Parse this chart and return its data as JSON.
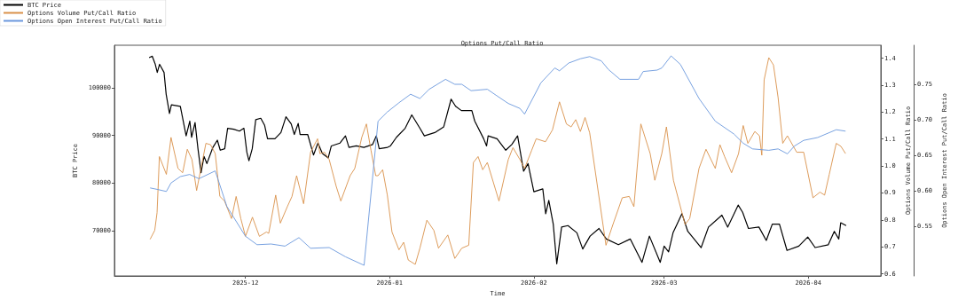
{
  "chart_data": {
    "type": "line",
    "title": "Options Put/Call Ratio",
    "xlabel": "Time",
    "ylabel": "BTC Price",
    "y2label": "Options Volume Put/Call Ratio",
    "y3label": "Options Open Interest Put/Call Ratio",
    "xlim": [
      "2025-11-02T20:00",
      "2026-04-16T14:00"
    ],
    "xticks": [
      "2025-12",
      "2026-01",
      "2026-02",
      "2026-03",
      "2026-04"
    ],
    "ylim": [
      60556,
      108889
    ],
    "yticks": [
      70000,
      80000,
      90000,
      100000
    ],
    "y2lim": [
      0.592,
      1.448
    ],
    "y2ticks": [
      0.6,
      0.7,
      0.8,
      0.9,
      {
        "value": 1,
        "label": "1.0"
      },
      1.1,
      1.2,
      1.3,
      1.4
    ],
    "y3lim": [
      0.48,
      0.805
    ],
    "y3ticks": [
      0.55,
      {
        "value": 0.6,
        "label": "0.60"
      },
      0.65,
      {
        "value": 0.7,
        "label": "0.70"
      },
      0.75
    ],
    "legend": "top left",
    "grid": false,
    "marker": "none",
    "series": [
      {
        "name": "BTC Price",
        "color": "#000000",
        "x": [
          "2025-11-10T07:00",
          "2025-11-10T23:00",
          "2025-11-11T14:00",
          "2025-11-12T01:00",
          "2025-11-12T13:00",
          "2025-11-13T12:00",
          "2025-11-13T23:00",
          "2025-11-14T16:00",
          "2025-11-15T02:00",
          "2025-11-17T00:00",
          "2025-11-18T06:00",
          "2025-11-19T01:00",
          "2025-11-19T10:00",
          "2025-11-20T04:00",
          "2025-11-20T19:00",
          "2025-11-21T11:00",
          "2025-11-22T02:00",
          "2025-11-22T17:00",
          "2025-11-24T00:00",
          "2025-11-24T23:00",
          "2025-11-25T14:00",
          "2025-11-26T13:00",
          "2025-11-27T04:00",
          "2025-11-28T11:00",
          "2025-11-29T17:00",
          "2025-11-30T16:00",
          "2025-12-01T07:00",
          "2025-12-01T18:00",
          "2025-12-02T11:00",
          "2025-12-03T05:00",
          "2025-12-04T07:00",
          "2025-12-05T03:00",
          "2025-12-05T18:00",
          "2025-12-07T08:00",
          "2025-12-08T15:00",
          "2025-12-09T17:00",
          "2025-12-10T20:00",
          "2025-12-11T12:00",
          "2025-12-12T08:00",
          "2025-12-12T18:00",
          "2025-12-14T09:00",
          "2025-12-15T15:00",
          "2025-12-16T14:00",
          "2025-12-17T13:00",
          "2025-12-18T19:00",
          "2025-12-19T11:00",
          "2025-12-21T08:00",
          "2025-12-22T12:00",
          "2025-12-23T06:00",
          "2025-12-24T20:00",
          "2025-12-26T11:00",
          "2025-12-28T08:00",
          "2025-12-29T03:00",
          "2025-12-29T18:00",
          "2025-12-31T13:00",
          "2026-01-01T04:00",
          "2026-01-02T11:00",
          "2026-01-04T08:00",
          "2026-01-05T18:00",
          "2026-01-07T12:00",
          "2026-01-08T11:00",
          "2026-01-10T17:00",
          "2026-01-12T15:00",
          "2026-01-14T05:00",
          "2026-01-15T04:00",
          "2026-01-16T10:00",
          "2026-01-18T16:00",
          "2026-01-19T07:00",
          "2026-01-21T05:00",
          "2026-01-21T20:00",
          "2026-01-22T04:00",
          "2026-01-24T02:00",
          "2026-01-25T23:00",
          "2026-01-27T06:00",
          "2026-01-28T12:00",
          "2026-01-29T19:00",
          "2026-01-30T18:00",
          "2026-02-01T00:00",
          "2026-02-02T22:00",
          "2026-02-03T13:00",
          "2026-02-04T05:00",
          "2026-02-05T04:00",
          "2026-02-05T22:00",
          "2026-02-06T23:00",
          "2026-02-08T08:00",
          "2026-02-10T06:00",
          "2026-02-11T12:00",
          "2026-02-13T02:00",
          "2026-02-15T00:00",
          "2026-02-16T14:00",
          "2026-02-19T04:00",
          "2026-02-21T17:00",
          "2026-02-24T06:00",
          "2026-02-25T20:00",
          "2026-02-28T04:00",
          "2026-03-01T00:00",
          "2026-03-01T23:00",
          "2026-03-02T22:00",
          "2026-03-04T20:00",
          "2026-03-06T02:00",
          "2026-03-08T23:00",
          "2026-03-10T13:00",
          "2026-03-13T10:00",
          "2026-03-14T16:00",
          "2026-03-16T22:00",
          "2026-03-17T21:00",
          "2026-03-19T03:00",
          "2026-03-21T09:00",
          "2026-03-22T23:00",
          "2026-03-24T06:00",
          "2026-03-25T19:00",
          "2026-03-27T10:00",
          "2026-03-29T23:00",
          "2026-03-31T21:00",
          "2026-04-02T11:00",
          "2026-04-05T07:00",
          "2026-04-06T14:00",
          "2026-04-07T13:00",
          "2026-04-07T23:00",
          "2026-04-09T03:00"
        ],
        "values": [
          106300,
          106600,
          105000,
          103200,
          104900,
          103200,
          98600,
          94600,
          96400,
          96100,
          89900,
          93000,
          89600,
          92700,
          87200,
          82200,
          85600,
          84100,
          87500,
          89000,
          86900,
          87200,
          91500,
          91300,
          90900,
          91500,
          86500,
          84700,
          87200,
          93300,
          93600,
          92100,
          89300,
          89300,
          90600,
          93900,
          92400,
          90200,
          92500,
          90200,
          90200,
          85900,
          88400,
          86200,
          85300,
          87800,
          88400,
          89900,
          87500,
          87800,
          87500,
          88100,
          89900,
          87200,
          87500,
          87800,
          89600,
          91500,
          94300,
          91500,
          89900,
          90600,
          91800,
          97600,
          96100,
          95200,
          95200,
          93000,
          89300,
          87800,
          89900,
          89300,
          86900,
          88100,
          89900,
          82500,
          84100,
          78200,
          78800,
          73600,
          76400,
          71400,
          63100,
          70800,
          71100,
          69600,
          66200,
          68900,
          70500,
          68300,
          67100,
          68300,
          63400,
          68900,
          63400,
          66800,
          65600,
          69600,
          73600,
          69900,
          66500,
          70800,
          73300,
          70800,
          75400,
          73900,
          70500,
          70800,
          68000,
          71400,
          71400,
          65900,
          66800,
          68700,
          66500,
          67100,
          69900,
          68300,
          71700,
          71100
        ]
      },
      {
        "name": "Options Volume Put/Call Ratio",
        "color": "#d9914a",
        "axis": "y2",
        "x": [
          "2025-11-10T12:00",
          "2025-11-11T12:00",
          "2025-11-12T00:00",
          "2025-11-12T12:00",
          "2025-11-14T00:00",
          "2025-11-15T00:00",
          "2025-11-16T12:00",
          "2025-11-17T12:00",
          "2025-11-18T12:00",
          "2025-11-19T12:00",
          "2025-11-20T12:00",
          "2025-11-22T12:00",
          "2025-11-23T12:00",
          "2025-11-24T12:00",
          "2025-11-25T12:00",
          "2025-11-26T12:00",
          "2025-11-28T00:00",
          "2025-11-29T00:00",
          "2025-11-30T00:00",
          "2025-12-01T00:00",
          "2025-12-02T12:00",
          "2025-12-04T00:00",
          "2025-12-05T12:00",
          "2025-12-06T00:00",
          "2025-12-07T12:00",
          "2025-12-08T12:00",
          "2025-12-10T00:00",
          "2025-12-11T00:00",
          "2025-12-12T00:00",
          "2025-12-13T12:00",
          "2025-12-15T00:00",
          "2025-12-16T12:00",
          "2025-12-17T00:00",
          "2025-12-18T00:00",
          "2025-12-19T00:00",
          "2025-12-20T12:00",
          "2025-12-21T12:00",
          "2025-12-23T12:00",
          "2025-12-24T12:00",
          "2025-12-26T00:00",
          "2025-12-27T00:00",
          "2025-12-28T00:00",
          "2025-12-29T00:00",
          "2025-12-29T12:00",
          "2025-12-30T12:00",
          "2025-12-31T12:00",
          "2026-01-01T12:00",
          "2026-01-03T00:00",
          "2026-01-04T00:00",
          "2026-01-05T00:00",
          "2026-01-06T12:00",
          "2026-01-07T12:00",
          "2026-01-09T00:00",
          "2026-01-10T12:00",
          "2026-01-11T12:00",
          "2026-01-13T12:00",
          "2026-01-15T00:00",
          "2026-01-16T12:00",
          "2026-01-18T00:00",
          "2026-01-19T00:00",
          "2026-01-20T00:00",
          "2026-01-21T00:00",
          "2026-01-22T00:00",
          "2026-01-24T12:00",
          "2026-01-26T12:00",
          "2026-01-27T12:00",
          "2026-01-29T00:00",
          "2026-01-30T00:00",
          "2026-01-31T12:00",
          "2026-02-01T12:00",
          "2026-02-03T12:00",
          "2026-02-05T00:00",
          "2026-02-06T12:00",
          "2026-02-08T00:00",
          "2026-02-09T00:00",
          "2026-02-10T00:00",
          "2026-02-11T00:00",
          "2026-02-12T00:00",
          "2026-02-13T00:00",
          "2026-02-16T12:00",
          "2026-02-18T00:00",
          "2026-02-20T00:00",
          "2026-02-21T12:00",
          "2026-02-22T12:00",
          "2026-02-24T00:00",
          "2026-02-26T00:00",
          "2026-02-27T00:00",
          "2026-02-28T12:00",
          "2026-03-01T12:00",
          "2026-03-03T00:00",
          "2026-03-05T12:00",
          "2026-03-06T12:00",
          "2026-03-08T12:00",
          "2026-03-10T00:00",
          "2026-03-12T00:00",
          "2026-03-13T00:00",
          "2026-03-14T00:00",
          "2026-03-15T12:00",
          "2026-03-17T00:00",
          "2026-03-18T00:00",
          "2026-03-19T00:00",
          "2026-03-20T12:00",
          "2026-03-21T12:00",
          "2026-03-22T00:00",
          "2026-03-22T12:00",
          "2026-03-23T12:00",
          "2026-03-24T12:00",
          "2026-03-25T12:00",
          "2026-03-26T12:00",
          "2026-03-27T12:00",
          "2026-03-29T12:00",
          "2026-03-31T00:00",
          "2026-04-02T00:00",
          "2026-04-03T12:00",
          "2026-04-04T12:00",
          "2026-04-05T12:00",
          "2026-04-07T00:00",
          "2026-04-08T00:00",
          "2026-04-09T00:00"
        ],
        "values": [
          0.728,
          0.761,
          0.827,
          1.035,
          0.969,
          1.106,
          0.991,
          0.975,
          1.062,
          1.024,
          0.909,
          1.084,
          1.079,
          1.046,
          0.887,
          0.87,
          0.805,
          0.887,
          0.805,
          0.739,
          0.81,
          0.739,
          0.755,
          0.75,
          0.892,
          0.788,
          0.849,
          0.887,
          0.964,
          0.86,
          1.051,
          1.101,
          1.046,
          1.051,
          1.024,
          0.925,
          0.87,
          0.964,
          0.991,
          1.106,
          1.156,
          1.057,
          0.964,
          0.964,
          0.986,
          0.892,
          0.755,
          0.689,
          0.717,
          0.651,
          0.635,
          0.695,
          0.799,
          0.761,
          0.695,
          0.744,
          0.657,
          0.695,
          0.706,
          1.013,
          1.035,
          0.986,
          1.013,
          0.87,
          1.024,
          1.068,
          1.024,
          0.991,
          1.057,
          1.101,
          1.09,
          1.134,
          1.238,
          1.156,
          1.145,
          1.172,
          1.128,
          1.18,
          1.123,
          0.706,
          0.783,
          0.882,
          0.887,
          0.849,
          1.156,
          1.046,
          0.947,
          1.046,
          1.145,
          0.947,
          0.783,
          0.805,
          0.991,
          1.062,
          0.991,
          1.079,
          1.035,
          0.975,
          1.046,
          1.15,
          1.084,
          1.128,
          1.112,
          1.04,
          1.32,
          1.402,
          1.375,
          1.254,
          1.084,
          1.112,
          1.051,
          1.051,
          0.882,
          0.903,
          0.892,
          0.969,
          1.084,
          1.073,
          1.046
        ]
      },
      {
        "name": "Options Open Interest Put/Call Ratio",
        "color": "#6a97dd",
        "axis": "y3",
        "x": [
          "2025-11-10T12:00",
          "2025-11-12T00:00",
          "2025-11-14T00:00",
          "2025-11-15T00:00",
          "2025-11-17T00:00",
          "2025-11-19T00:00",
          "2025-11-21T00:00",
          "2025-11-24T12:00",
          "2025-11-27T00:00",
          "2025-12-01T00:00",
          "2025-12-03T12:00",
          "2025-12-06T12:00",
          "2025-12-09T12:00",
          "2025-12-12T12:00",
          "2025-12-15T00:00",
          "2025-12-19T00:00",
          "2025-12-22T12:00",
          "2025-12-26T12:00",
          "2025-12-29T12:00",
          "2025-12-31T12:00",
          "2026-01-03T00:00",
          "2026-01-05T12:00",
          "2026-01-07T12:00",
          "2026-01-09T12:00",
          "2026-01-13T00:00",
          "2026-01-15T00:00",
          "2026-01-16T12:00",
          "2026-01-18T12:00",
          "2026-01-22T00:00",
          "2026-01-24T00:00",
          "2026-01-26T12:00",
          "2026-01-29T00:00",
          "2026-01-30T00:00",
          "2026-02-02T12:00",
          "2026-02-05T12:00",
          "2026-02-06T12:00",
          "2026-02-08T12:00",
          "2026-02-11T00:00",
          "2026-02-13T00:00",
          "2026-02-15T12:00",
          "2026-02-17T00:00",
          "2026-02-19T12:00",
          "2026-02-23T12:00",
          "2026-02-24T12:00",
          "2026-02-27T12:00",
          "2026-02-28T12:00",
          "2026-03-02T12:00",
          "2026-03-04T12:00",
          "2026-03-08T12:00",
          "2026-03-12T00:00",
          "2026-03-16T00:00",
          "2026-03-18T00:00",
          "2026-03-20T00:00",
          "2026-03-23T12:00",
          "2026-03-25T12:00",
          "2026-03-27T12:00",
          "2026-03-29T00:00",
          "2026-03-31T00:00",
          "2026-04-03T00:00",
          "2026-04-07T00:00",
          "2026-04-09T00:00"
        ],
        "values": [
          0.604,
          0.602,
          0.599,
          0.611,
          0.62,
          0.623,
          0.617,
          0.628,
          0.578,
          0.536,
          0.524,
          0.525,
          0.522,
          0.534,
          0.519,
          0.52,
          0.507,
          0.495,
          0.698,
          0.711,
          0.724,
          0.736,
          0.73,
          0.743,
          0.757,
          0.75,
          0.75,
          0.741,
          0.743,
          0.734,
          0.723,
          0.716,
          0.708,
          0.752,
          0.773,
          0.769,
          0.78,
          0.786,
          0.789,
          0.783,
          0.771,
          0.757,
          0.757,
          0.768,
          0.77,
          0.773,
          0.79,
          0.778,
          0.73,
          0.698,
          0.68,
          0.667,
          0.659,
          0.657,
          0.659,
          0.652,
          0.663,
          0.671,
          0.675,
          0.686,
          0.684
        ]
      }
    ]
  }
}
